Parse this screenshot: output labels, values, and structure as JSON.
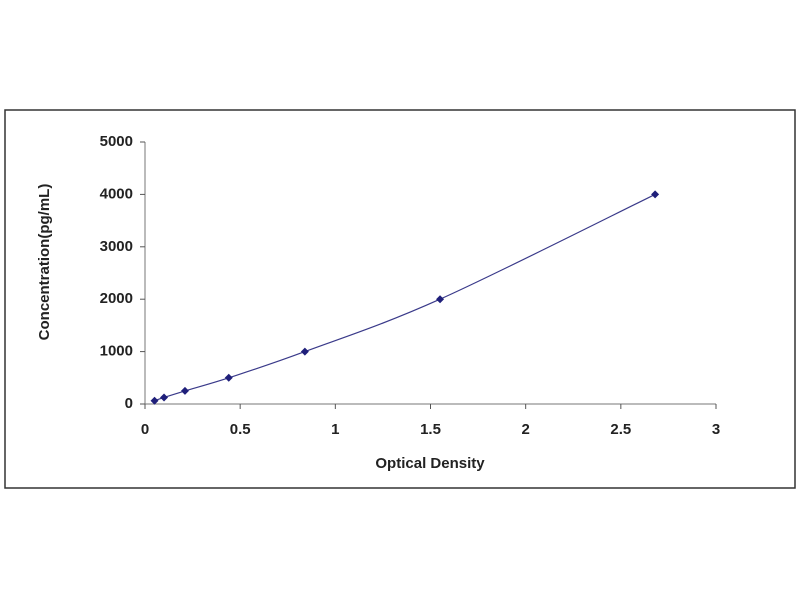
{
  "chart_data": {
    "type": "scatter",
    "x_label": "Optical Density",
    "y_label": "Concentration(pg/mL)",
    "x": [
      0.05,
      0.1,
      0.21,
      0.44,
      0.84,
      1.55,
      2.68
    ],
    "values": [
      62.5,
      125,
      250,
      500,
      1000,
      2000,
      4000
    ],
    "color": "#1f1f7a",
    "line_color": "#3a3a8a",
    "xlim": [
      0,
      3
    ],
    "xticks": [
      0,
      0.5,
      1,
      1.5,
      2,
      2.5,
      3
    ],
    "ylim": [
      0,
      5000
    ],
    "yticks": [
      0,
      1000,
      2000,
      3000,
      4000,
      5000
    ],
    "grid": false
  }
}
